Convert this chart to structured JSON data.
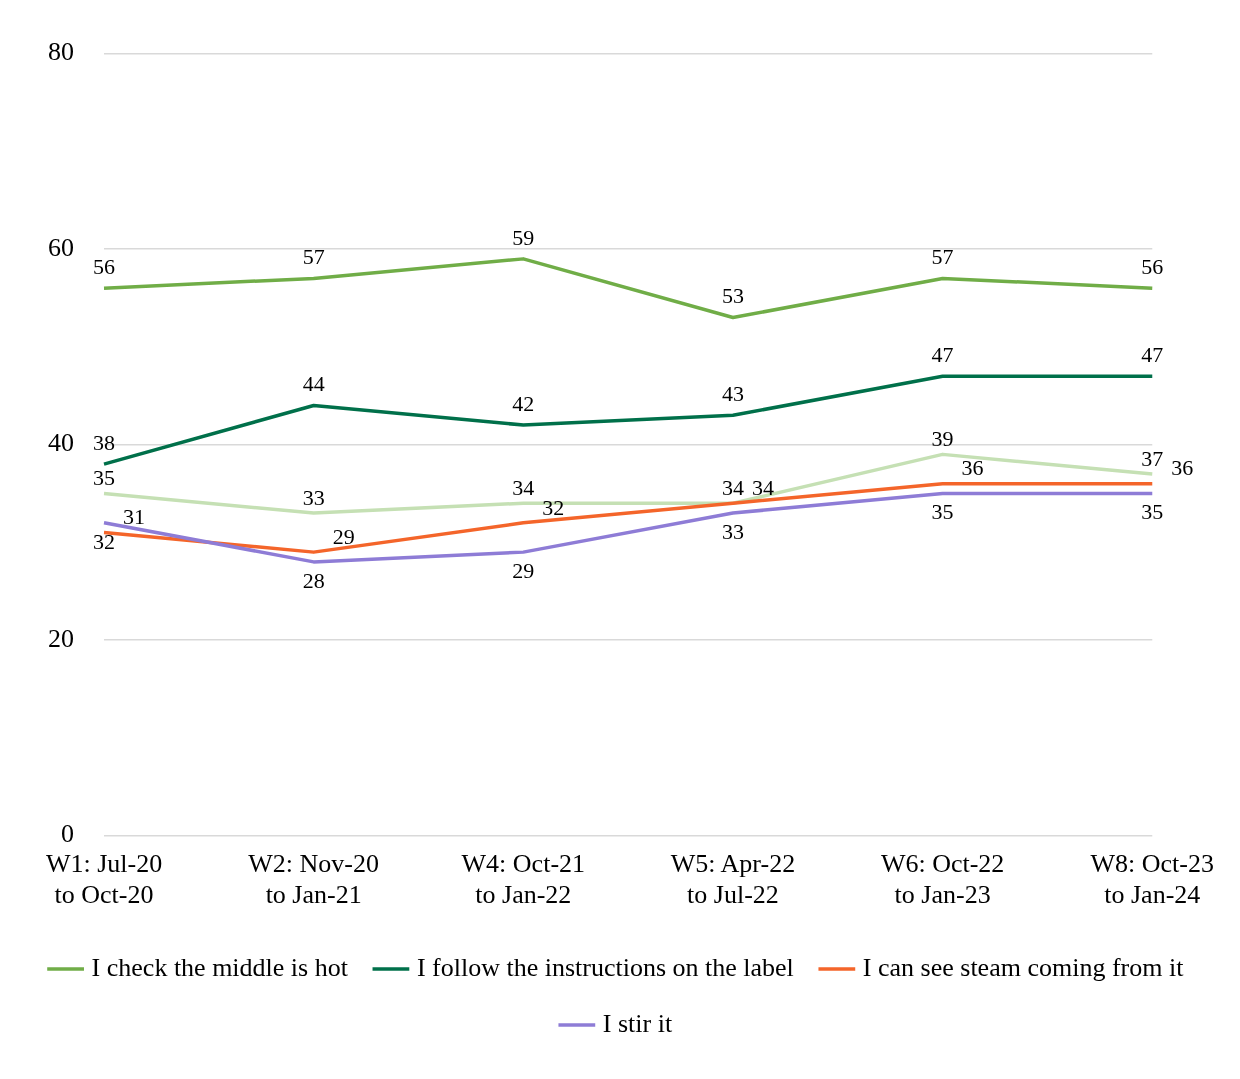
{
  "chart_data": {
    "type": "line",
    "categories": [
      "W1: Jul-20 to Oct-20",
      "W2: Nov-20 to Jan-21",
      "W4: Oct-21 to Jan-22",
      "W5: Apr-22 to Jul-22",
      "W6: Oct-22 to Jan-23",
      "W8: Oct-23 to Jan-24"
    ],
    "series": [
      {
        "name": "I check the middle is hot",
        "color": "#70ad47",
        "values": [
          56,
          57,
          59,
          53,
          57,
          56
        ]
      },
      {
        "name": "I follow the instructions on the label",
        "color": "#00704a",
        "values": [
          38,
          44,
          42,
          43,
          47,
          47
        ]
      },
      {
        "color": "#c5e0b4",
        "values": [
          35,
          33,
          34,
          34,
          39,
          37
        ]
      },
      {
        "name": "I can see steam coming from it",
        "color": "#f4652a",
        "values": [
          31,
          29,
          32,
          34,
          36,
          36
        ]
      },
      {
        "name": "I stir it",
        "color": "#8e7cd6",
        "values": [
          32,
          28,
          29,
          33,
          35,
          35
        ]
      }
    ],
    "ylim": [
      0,
      80
    ],
    "yticks": [
      0,
      20,
      40,
      60,
      80
    ],
    "grid": "y",
    "legend": "bottom",
    "data_labels": true,
    "marker": "none",
    "line_style": "solid"
  }
}
